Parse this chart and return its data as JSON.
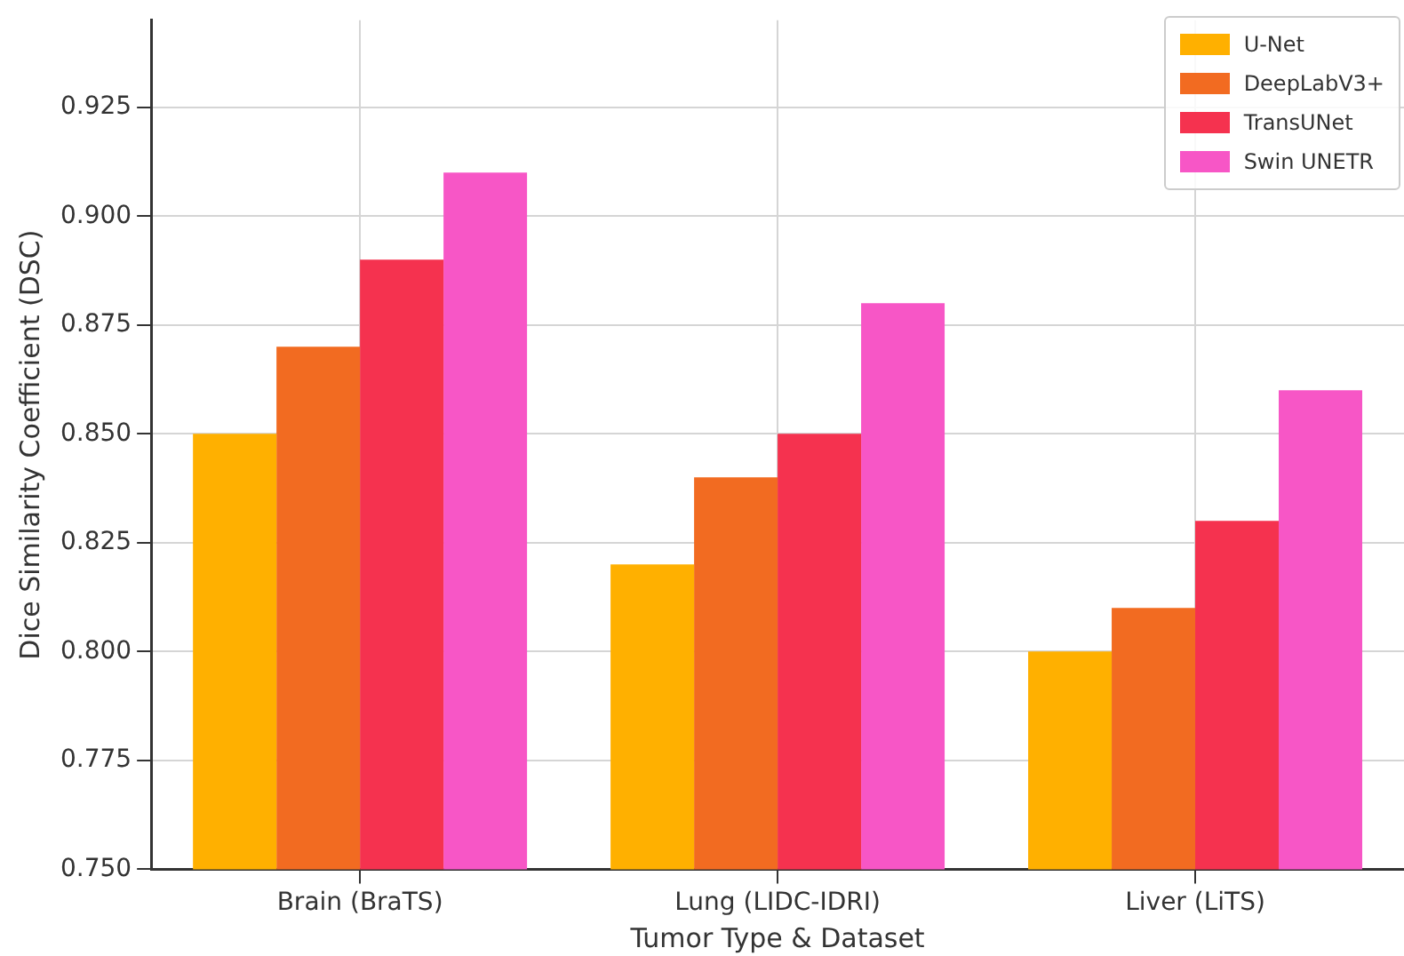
{
  "chart_data": {
    "type": "bar",
    "xlabel": "Tumor Type & Dataset",
    "ylabel": "Dice Similarity Coefficient (DSC)",
    "categories": [
      "Brain (BraTS)",
      "Lung (LIDC-IDRI)",
      "Liver (LiTS)"
    ],
    "series": [
      {
        "name": "U-Net",
        "color": "#ffb000",
        "values": [
          0.85,
          0.82,
          0.8
        ]
      },
      {
        "name": "DeepLabV3+",
        "color": "#f26b21",
        "values": [
          0.87,
          0.84,
          0.81
        ]
      },
      {
        "name": "TransUNet",
        "color": "#f5324f",
        "values": [
          0.89,
          0.85,
          0.83
        ]
      },
      {
        "name": "Swin UNETR",
        "color": "#f756c6",
        "values": [
          0.91,
          0.88,
          0.86
        ]
      }
    ],
    "ylim": [
      0.75,
      0.945
    ],
    "yticks": [
      {
        "value": 0.75,
        "label": "0.750"
      },
      {
        "value": 0.775,
        "label": "0.775"
      },
      {
        "value": 0.8,
        "label": "0.800"
      },
      {
        "value": 0.825,
        "label": "0.825"
      },
      {
        "value": 0.85,
        "label": "0.850"
      },
      {
        "value": 0.875,
        "label": "0.875"
      },
      {
        "value": 0.9,
        "label": "0.900"
      },
      {
        "value": 0.925,
        "label": "0.925"
      }
    ],
    "grid": true,
    "legend": "top right"
  }
}
